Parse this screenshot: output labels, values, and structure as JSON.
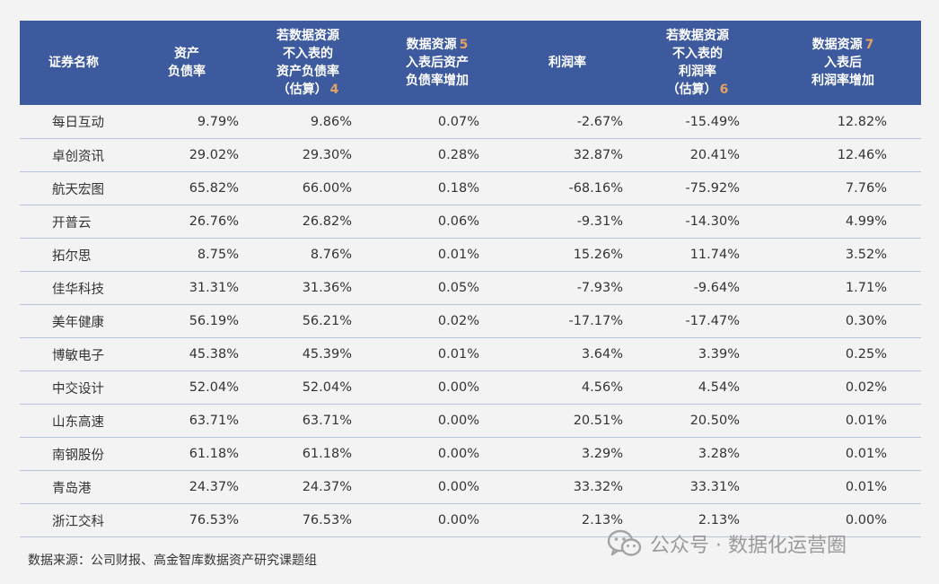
{
  "table": {
    "headers": [
      {
        "lines": [
          "证券名称"
        ],
        "note": ""
      },
      {
        "lines": [
          "资产",
          "负债率"
        ],
        "note": ""
      },
      {
        "lines": [
          "若数据资源",
          "不入表的",
          "资产负债率",
          "（估算）"
        ],
        "note": "4"
      },
      {
        "lines": [
          "数据资源",
          "入表后资产",
          "负债率增加"
        ],
        "note": "5"
      },
      {
        "lines": [
          "利润率"
        ],
        "note": ""
      },
      {
        "lines": [
          "若数据资源",
          "不入表的",
          "利润率",
          "（估算）"
        ],
        "note": "6"
      },
      {
        "lines": [
          "数据资源",
          "入表后",
          "利润率增加"
        ],
        "note": "7"
      }
    ],
    "rows": [
      [
        "每日互动",
        "9.79%",
        "9.86%",
        "0.07%",
        "-2.67%",
        "-15.49%",
        "12.82%"
      ],
      [
        "卓创资讯",
        "29.02%",
        "29.30%",
        "0.28%",
        "32.87%",
        "20.41%",
        "12.46%"
      ],
      [
        "航天宏图",
        "65.82%",
        "66.00%",
        "0.18%",
        "-68.16%",
        "-75.92%",
        "7.76%"
      ],
      [
        "开普云",
        "26.76%",
        "26.82%",
        "0.06%",
        "-9.31%",
        "-14.30%",
        "4.99%"
      ],
      [
        "拓尔思",
        "8.75%",
        "8.76%",
        "0.01%",
        "15.26%",
        "11.74%",
        "3.52%"
      ],
      [
        "佳华科技",
        "31.31%",
        "31.36%",
        "0.05%",
        "-7.93%",
        "-9.64%",
        "1.71%"
      ],
      [
        "美年健康",
        "56.19%",
        "56.21%",
        "0.02%",
        "-17.17%",
        "-17.47%",
        "0.30%"
      ],
      [
        "博敏电子",
        "45.38%",
        "45.39%",
        "0.01%",
        "3.64%",
        "3.39%",
        "0.25%"
      ],
      [
        "中交设计",
        "52.04%",
        "52.04%",
        "0.00%",
        "4.56%",
        "4.54%",
        "0.02%"
      ],
      [
        "山东高速",
        "63.71%",
        "63.71%",
        "0.00%",
        "20.51%",
        "20.50%",
        "0.01%"
      ],
      [
        "南钢股份",
        "61.18%",
        "61.18%",
        "0.00%",
        "3.29%",
        "3.28%",
        "0.01%"
      ],
      [
        "青岛港",
        "24.37%",
        "24.37%",
        "0.00%",
        "33.32%",
        "33.31%",
        "0.01%"
      ],
      [
        "浙江交科",
        "76.53%",
        "76.53%",
        "0.00%",
        "2.13%",
        "2.13%",
        "0.00%"
      ]
    ]
  },
  "source_text": "数据来源：公司财报、高金智库数据资产研究课题组",
  "watermark_text": "公众号 · 数据化运营圈",
  "watermark_icon": "wechat-icon",
  "colors": {
    "header_bg": "#3d5a9e",
    "header_text": "#ffffff",
    "note_color": "#e2a363",
    "row_border": "#b9c3de",
    "page_bg": "#f3f3f3"
  }
}
